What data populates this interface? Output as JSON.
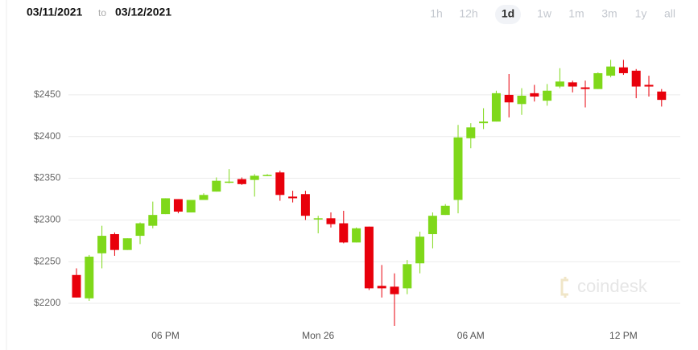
{
  "header": {
    "date_from": "03/11/2021",
    "to": "to",
    "date_to": "03/12/2021",
    "ranges": [
      "1h",
      "12h",
      "1d",
      "1w",
      "1m",
      "3m",
      "1y",
      "all"
    ],
    "selected_range": 2
  },
  "watermark": "coindesk",
  "chart_data": {
    "type": "candlestick",
    "categories": [
      null,
      null,
      null,
      null,
      null,
      null,
      null,
      "06 PM",
      null,
      null,
      null,
      null,
      null,
      null,
      null,
      null,
      null,
      null,
      null,
      "Mon 26",
      null,
      null,
      null,
      null,
      null,
      null,
      null,
      null,
      null,
      null,
      null,
      "06 AM",
      null,
      null,
      null,
      null,
      null,
      null,
      null,
      null,
      null,
      null,
      null,
      "12 PM",
      null,
      null,
      null
    ],
    "open": [
      2234,
      2206,
      2260,
      2283,
      2264,
      2281,
      2293,
      2307,
      2325,
      2309,
      2324,
      2334,
      2345,
      2349,
      2348,
      2353,
      2357,
      2328,
      2331,
      2301,
      2302,
      2296,
      2273,
      2292,
      2221,
      2220,
      2218,
      2248,
      2283,
      2306,
      2324,
      2398,
      2416,
      2418,
      2450,
      2439,
      2452,
      2443,
      2460,
      2465,
      2459,
      2457,
      2473,
      2483,
      2479,
      2462,
      2454
    ],
    "high": [
      2242,
      2258,
      2293,
      2285,
      2278,
      2297,
      2322,
      2326,
      2325,
      2324,
      2332,
      2351,
      2361,
      2351,
      2355,
      2355,
      2359,
      2335,
      2335,
      2305,
      2309,
      2311,
      2291,
      2292,
      2246,
      2236,
      2252,
      2286,
      2309,
      2319,
      2414,
      2416,
      2434,
      2455,
      2475,
      2458,
      2462,
      2463,
      2482,
      2467,
      2467,
      2477,
      2492,
      2492,
      2481,
      2473,
      2457
    ],
    "low": [
      2207,
      2203,
      2242,
      2257,
      2264,
      2271,
      2290,
      2307,
      2308,
      2309,
      2324,
      2334,
      2344,
      2342,
      2328,
      2353,
      2323,
      2321,
      2300,
      2284,
      2291,
      2272,
      2273,
      2216,
      2207,
      2173,
      2211,
      2236,
      2266,
      2306,
      2308,
      2386,
      2409,
      2418,
      2423,
      2426,
      2442,
      2437,
      2458,
      2453,
      2435,
      2457,
      2471,
      2474,
      2446,
      2448,
      2436
    ],
    "close": [
      2207,
      2256,
      2281,
      2264,
      2278,
      2296,
      2306,
      2326,
      2310,
      2324,
      2330,
      2347,
      2346,
      2343,
      2353,
      2354,
      2330,
      2326,
      2305,
      2302,
      2295,
      2273,
      2290,
      2218,
      2218,
      2211,
      2247,
      2280,
      2305,
      2317,
      2399,
      2411,
      2418,
      2452,
      2441,
      2449,
      2448,
      2455,
      2466,
      2460,
      2457,
      2476,
      2484,
      2476,
      2460,
      2460,
      2444
    ],
    "up_color": "#7fd81a",
    "down_color": "#e8000b",
    "ylim": [
      2173,
      2530
    ],
    "yticks": [
      {
        "value": 2200,
        "label": "$2200"
      },
      {
        "value": 2250,
        "label": "$2250"
      },
      {
        "value": 2300,
        "label": "$2300"
      },
      {
        "value": 2350,
        "label": "$2350"
      },
      {
        "value": 2400,
        "label": "$2400"
      },
      {
        "value": 2450,
        "label": "$2450"
      }
    ],
    "grid": true
  }
}
